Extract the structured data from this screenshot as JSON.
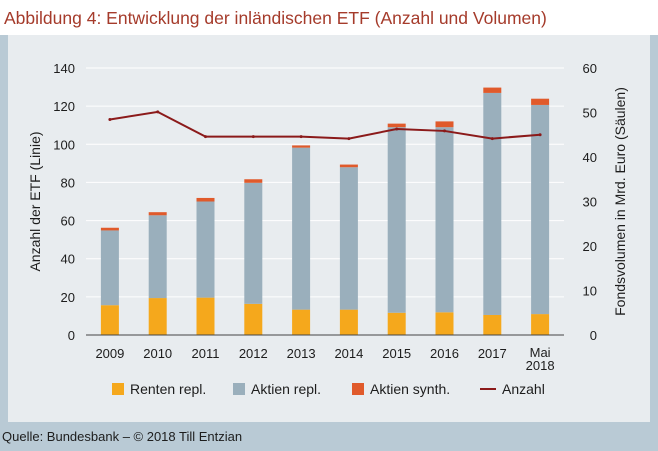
{
  "title": "Abbildung 4: Entwicklung der inländischen ETF (Anzahl und Volumen)",
  "source": "Quelle: Bundesbank – © 2018 Till Entzian",
  "chart_data": {
    "type": "bar",
    "stacked": true,
    "categories": [
      "2009",
      "2010",
      "2011",
      "2012",
      "2013",
      "2014",
      "2015",
      "2016",
      "2017",
      "Mai 2018"
    ],
    "ylabel": "Anzahl der ETF (Linie)",
    "y2label": "Fondsvolumen in Mrd. Euro (Säulen)",
    "ylim": [
      0,
      140
    ],
    "y2lim": [
      0,
      60
    ],
    "yticks": [
      0,
      20,
      40,
      60,
      80,
      100,
      120,
      140
    ],
    "y2ticks": [
      0,
      10,
      20,
      30,
      40,
      50,
      60
    ],
    "grid": "horizontal",
    "legend_position": "bottom",
    "series": [
      {
        "name": "Renten repl.",
        "axis": "right",
        "kind": "bar",
        "color": "#f5a81c",
        "values": [
          6.7,
          8.3,
          8.4,
          7.0,
          5.7,
          5.7,
          5.0,
          5.1,
          4.5,
          4.7
        ]
      },
      {
        "name": "Aktien repl.",
        "axis": "right",
        "kind": "bar",
        "color": "#9aafbc",
        "values": [
          16.8,
          18.6,
          21.6,
          27.2,
          36.4,
          32.0,
          41.7,
          41.6,
          49.9,
          47.0
        ]
      },
      {
        "name": "Aktien synth.",
        "axis": "right",
        "kind": "bar",
        "color": "#e05a2b",
        "values": [
          0.6,
          0.7,
          0.8,
          0.8,
          0.5,
          0.6,
          0.8,
          1.3,
          1.2,
          1.4
        ]
      },
      {
        "name": "Anzahl",
        "axis": "left",
        "kind": "line",
        "color": "#8b1a1a",
        "values": [
          113,
          117,
          104,
          104,
          104,
          103,
          108,
          107,
          103,
          105
        ]
      }
    ]
  }
}
